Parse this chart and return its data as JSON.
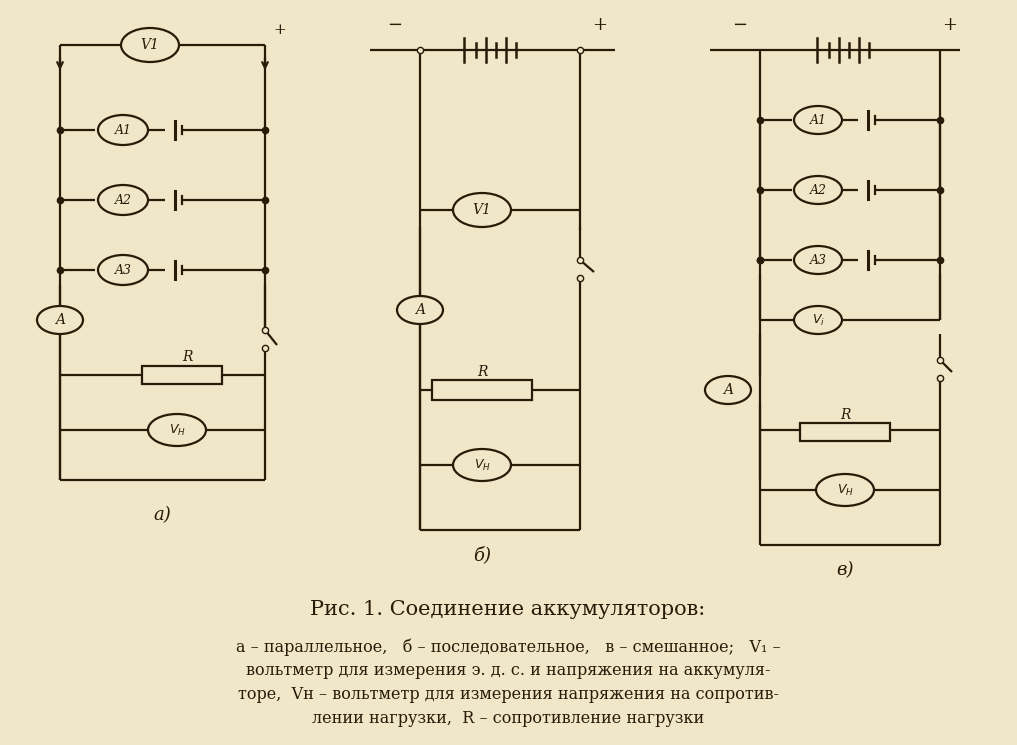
{
  "bg_color": "#f0e6c8",
  "line_color": "#2a1a08",
  "title": "Рис. 1. Соединение аккумуляторов:",
  "label_a": "а)",
  "label_b": "б)",
  "label_v": "в)"
}
